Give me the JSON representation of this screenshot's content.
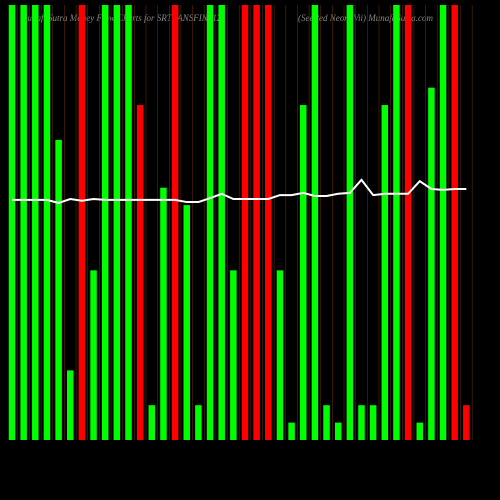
{
  "chart_data": {
    "type": "bar",
    "title": "MunafaSutra  Money Flow Charts for SRTRANSFIN_12",
    "subtitle": "(SeeRed Neon, Vii) MunafaSutra.com",
    "ylim": [
      0,
      100
    ],
    "values": [
      100,
      100,
      100,
      100,
      69,
      16,
      100,
      39,
      100,
      100,
      100,
      77,
      8,
      58,
      100,
      54,
      8,
      100,
      100,
      39,
      100,
      100,
      100,
      39,
      4,
      77,
      100,
      8,
      4,
      100,
      8,
      8,
      77,
      100,
      100,
      4,
      81,
      100,
      100,
      8
    ],
    "colors": [
      "#00ff00",
      "#00ff00",
      "#00ff00",
      "#00ff00",
      "#00ff00",
      "#00ff00",
      "#ff0000",
      "#00ff00",
      "#00ff00",
      "#00ff00",
      "#00ff00",
      "#ff0000",
      "#00ff00",
      "#00ff00",
      "#ff0000",
      "#00ff00",
      "#00ff00",
      "#00ff00",
      "#00ff00",
      "#00ff00",
      "#ff0000",
      "#ff0000",
      "#ff0000",
      "#00ff00",
      "#00ff00",
      "#00ff00",
      "#00ff00",
      "#00ff00",
      "#00ff00",
      "#00ff00",
      "#00ff00",
      "#00ff00",
      "#00ff00",
      "#00ff00",
      "#ff0000",
      "#00ff00",
      "#00ff00",
      "#00ff00",
      "#ff0000",
      "#ff0000"
    ],
    "line": {
      "color": "#ffffff",
      "values": [
        55.2,
        55.2,
        55.2,
        55.2,
        54.5,
        55.4,
        55,
        55.4,
        55.2,
        55.2,
        55.2,
        55.2,
        55.2,
        55.2,
        55.2,
        54.7,
        54.7,
        55.6,
        56.6,
        55.4,
        55.4,
        55.4,
        55.4,
        56.3,
        56.3,
        56.8,
        56.1,
        56.1,
        56.6,
        56.8,
        59.8,
        56.3,
        56.6,
        56.6,
        56.6,
        59.5,
        57.7,
        57.5,
        57.7,
        57.7
      ]
    }
  }
}
